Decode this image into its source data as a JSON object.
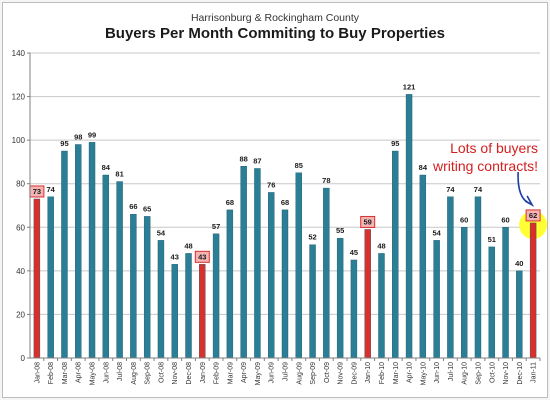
{
  "chart_data": {
    "type": "bar",
    "subtitle": "Harrisonburg & Rockingham County",
    "title": "Buyers Per Month Commiting to Buy Properties",
    "xlabel": "",
    "ylabel": "",
    "ylim": [
      0,
      140
    ],
    "yticks": [
      "0",
      "20",
      "40",
      "60",
      "80",
      "100",
      "120",
      "140"
    ],
    "grid": true,
    "categories": [
      "Jan-08",
      "Feb-08",
      "Mar-08",
      "Apr-08",
      "May-08",
      "Jun-08",
      "Jul-08",
      "Aug-08",
      "Sep-08",
      "Oct-08",
      "Nov-08",
      "Dec-08",
      "Jan-09",
      "Feb-09",
      "Mar-09",
      "Apr-09",
      "May-09",
      "Jun-09",
      "Jul-09",
      "Aug-09",
      "Sep-09",
      "Oct-09",
      "Nov-09",
      "Dec-09",
      "Jan-10",
      "Feb-10",
      "Mar-10",
      "Apr-10",
      "May-10",
      "Jun-10",
      "Jul-10",
      "Aug-10",
      "Sep-10",
      "Oct-10",
      "Nov-10",
      "Dec-10",
      "Jan-11"
    ],
    "values": [
      73,
      74,
      95,
      98,
      99,
      84,
      81,
      66,
      65,
      54,
      43,
      48,
      43,
      57,
      68,
      88,
      87,
      76,
      68,
      85,
      52,
      78,
      55,
      45,
      59,
      48,
      95,
      121,
      84,
      54,
      74,
      60,
      74,
      51,
      60,
      40,
      62
    ],
    "highlighted_categories": [
      "Jan-08",
      "Jan-09",
      "Jan-10",
      "Jan-11"
    ],
    "annotation": [
      "Lots of buyers",
      "writing contracts!"
    ],
    "colors": {
      "bar": "#2a7f96",
      "bar_highlight": "#d9302c",
      "label_box_fill": "#f4b4b4",
      "callout_circle": "#ffff33",
      "arrow": "#1f3fa8",
      "annotation_text": "#d42020",
      "grid": "#c8c8c8"
    }
  }
}
